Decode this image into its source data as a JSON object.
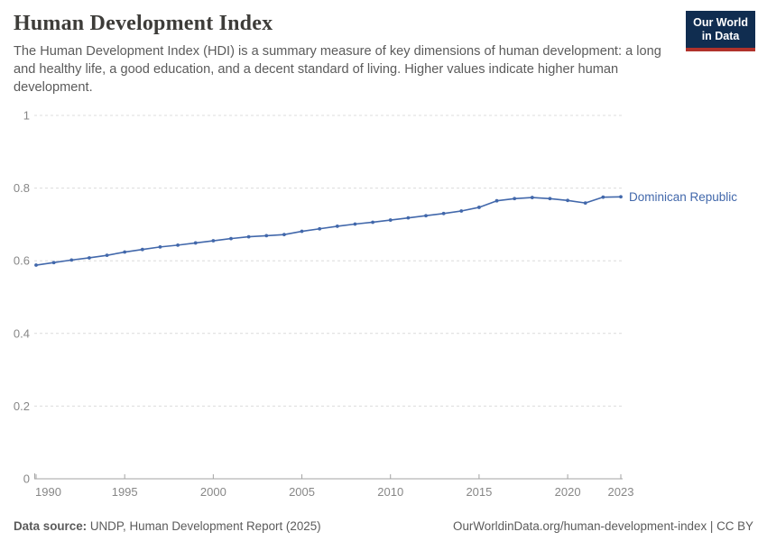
{
  "header": {
    "title": "Human Development Index",
    "subtitle": "The Human Development Index (HDI) is a summary measure of key dimensions of human development: a long and healthy life, a good education, and a decent standard of living. Higher values indicate higher human development.",
    "logo_line1": "Our World",
    "logo_line2": "in Data"
  },
  "chart_data": {
    "type": "line",
    "title": "Human Development Index",
    "xlabel": "",
    "ylabel": "",
    "xlim": [
      1990,
      2023
    ],
    "ylim": [
      0,
      1
    ],
    "x_ticks": [
      1990,
      1995,
      2000,
      2005,
      2010,
      2015,
      2020,
      2023
    ],
    "y_ticks": [
      0,
      0.2,
      0.4,
      0.6,
      0.8,
      1
    ],
    "grid": "horizontal-dashed",
    "legend_position": "end-of-line-label",
    "series": [
      {
        "name": "Dominican Republic",
        "color": "#4268ab",
        "x": [
          1990,
          1991,
          1992,
          1993,
          1994,
          1995,
          1996,
          1997,
          1998,
          1999,
          2000,
          2001,
          2002,
          2003,
          2004,
          2005,
          2006,
          2007,
          2008,
          2009,
          2010,
          2011,
          2012,
          2013,
          2014,
          2015,
          2016,
          2017,
          2018,
          2019,
          2020,
          2021,
          2022,
          2023
        ],
        "values": [
          0.588,
          0.595,
          0.602,
          0.608,
          0.615,
          0.624,
          0.631,
          0.638,
          0.643,
          0.649,
          0.655,
          0.661,
          0.666,
          0.669,
          0.672,
          0.681,
          0.688,
          0.695,
          0.701,
          0.706,
          0.712,
          0.718,
          0.724,
          0.73,
          0.737,
          0.747,
          0.765,
          0.771,
          0.774,
          0.771,
          0.766,
          0.759,
          0.775,
          0.776
        ]
      }
    ]
  },
  "footer": {
    "source_label": "Data source:",
    "source_value": " UNDP, Human Development Report (2025)",
    "rights": "OurWorldinData.org/human-development-index | CC BY"
  },
  "colors": {
    "line": "#4268ab",
    "logo_bg": "#102d50",
    "logo_stripe": "#b0322b",
    "grid": "#dcdcdc",
    "axis": "#a3a3a3",
    "tick_label": "#878787",
    "title": "#3d3c39",
    "subtitle": "#5b5b5b",
    "footer": "#5b5b5b"
  }
}
